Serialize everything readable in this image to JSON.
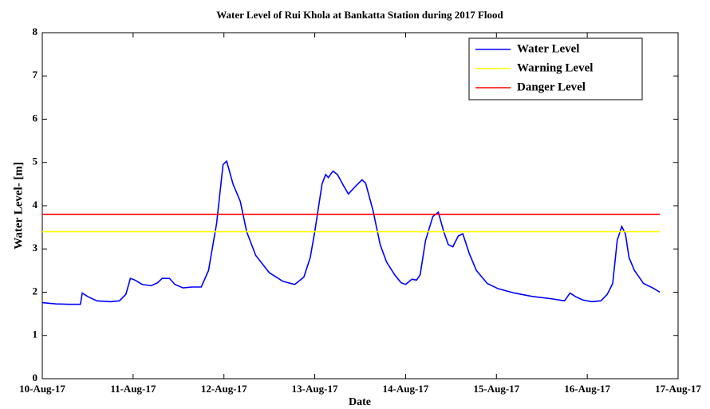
{
  "chart_data": {
    "type": "line",
    "title": "Water Level of Rui Khola at Bankatta Station during 2017 Flood",
    "xlabel": "Date",
    "ylabel": "Water Level- [m]",
    "series": [
      {
        "name": "Water Level",
        "color": "#0000ff",
        "x": [
          0,
          0.15,
          0.3,
          0.42,
          0.44,
          0.5,
          0.6,
          0.75,
          0.85,
          0.92,
          0.97,
          1.02,
          1.1,
          1.2,
          1.27,
          1.32,
          1.4,
          1.46,
          1.55,
          1.65,
          1.75,
          1.83,
          1.92,
          1.99,
          2.03,
          2.1,
          2.14,
          2.18,
          2.25,
          2.35,
          2.5,
          2.65,
          2.78,
          2.88,
          2.95,
          3.0,
          3.08,
          3.12,
          3.15,
          3.2,
          3.25,
          3.32,
          3.37,
          3.45,
          3.52,
          3.56,
          3.64,
          3.72,
          3.79,
          3.88,
          3.95,
          4.0,
          4.07,
          4.12,
          4.16,
          4.22,
          4.3,
          4.36,
          4.42,
          4.47,
          4.52,
          4.58,
          4.63,
          4.7,
          4.78,
          4.9,
          5.02,
          5.2,
          5.4,
          5.6,
          5.75,
          5.81,
          5.87,
          5.95,
          6.05,
          6.15,
          6.22,
          6.28,
          6.33,
          6.38,
          6.42,
          6.46,
          6.52,
          6.62,
          6.72,
          6.8
        ],
        "values": [
          1.76,
          1.73,
          1.72,
          1.72,
          1.98,
          1.9,
          1.8,
          1.78,
          1.8,
          1.95,
          2.32,
          2.28,
          2.18,
          2.15,
          2.22,
          2.32,
          2.32,
          2.18,
          2.1,
          2.12,
          2.12,
          2.5,
          3.6,
          4.95,
          5.03,
          4.5,
          4.3,
          4.1,
          3.4,
          2.85,
          2.45,
          2.25,
          2.18,
          2.35,
          2.8,
          3.4,
          4.5,
          4.72,
          4.65,
          4.8,
          4.72,
          4.45,
          4.27,
          4.45,
          4.6,
          4.52,
          3.9,
          3.1,
          2.7,
          2.4,
          2.22,
          2.18,
          2.3,
          2.28,
          2.4,
          3.2,
          3.75,
          3.85,
          3.4,
          3.1,
          3.05,
          3.3,
          3.35,
          2.9,
          2.5,
          2.2,
          2.08,
          1.98,
          1.9,
          1.85,
          1.8,
          1.98,
          1.9,
          1.82,
          1.78,
          1.8,
          1.95,
          2.2,
          3.2,
          3.52,
          3.35,
          2.8,
          2.5,
          2.2,
          2.1,
          2.0
        ]
      },
      {
        "name": "Warning Level",
        "color": "#ffff00",
        "x": [
          0,
          6.8
        ],
        "values": [
          3.4,
          3.4
        ]
      },
      {
        "name": "Danger Level",
        "color": "#ff0000",
        "x": [
          0,
          6.8
        ],
        "values": [
          3.8,
          3.8
        ]
      }
    ],
    "xlim": [
      0,
      7
    ],
    "xticks": [
      {
        "value": 0,
        "label": "10-Aug-17"
      },
      {
        "value": 1,
        "label": "11-Aug-17"
      },
      {
        "value": 2,
        "label": "12-Aug-17"
      },
      {
        "value": 3,
        "label": "13-Aug-17"
      },
      {
        "value": 4,
        "label": "14-Aug-17"
      },
      {
        "value": 5,
        "label": "15-Aug-17"
      },
      {
        "value": 6,
        "label": "16-Aug-17"
      },
      {
        "value": 7,
        "label": "17-Aug-17"
      }
    ],
    "ylim": [
      0,
      8
    ],
    "yticks": [
      0,
      1,
      2,
      3,
      4,
      5,
      6,
      7,
      8
    ],
    "legend": "upper right",
    "grid": false
  }
}
